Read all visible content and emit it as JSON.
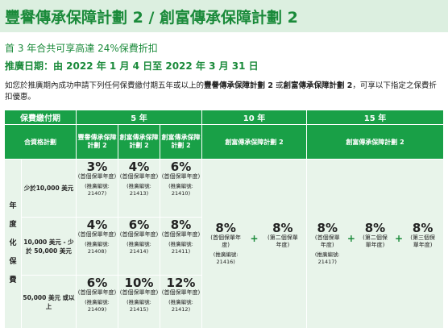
{
  "header": {
    "title": "豐譽傳承保障計劃 2 / 創富傳承保障計劃 2",
    "discount": "首 3 年合共可享高達 24%保費折扣",
    "promo_period": "推廣日期：由 2022 年 1 月 4 日至 2022 年 3 月 31 日",
    "intro_pre": "如您於推廣期內成功申請下列任何保費繳付期五年或以上的",
    "intro_plan1": "豐譽傳承保障計劃 2",
    "intro_or": " 或",
    "intro_plan2": "創富傳承保障計劃 2",
    "intro_post": "，可享以下指定之保費折扣優惠。"
  },
  "table": {
    "col_premium_term": "保費繳付期",
    "col_5yr": "5 年",
    "col_10yr": "10 年",
    "col_15yr": "15 年",
    "col_eligible_plan": "合資格計劃",
    "plan_fengyu": "豐譽傳承保障計劃 2",
    "plan_chuangfu": "創富傳承保障計劃 2",
    "plan_10yr": "創富傳承保障計劃 2",
    "plan_15yr": "創富傳承保障計劃 2",
    "side_label": "年度化保費",
    "rows": [
      {
        "label": "少於10,000 美元",
        "cells": [
          {
            "pct": "3%",
            "unit": "(首個保單年度)",
            "code": "(推廣編號: 21407)"
          },
          {
            "pct": "4%",
            "unit": "(首個保單年度)",
            "code": "(推廣編號: 21413)"
          },
          {
            "pct": "6%",
            "unit": "(首個保單年度)",
            "code": "(推廣編號: 21410)"
          }
        ]
      },
      {
        "label": "10,000 美元 - 少於 50,000 美元",
        "cells": [
          {
            "pct": "4%",
            "unit": "(首個保單年度)",
            "code": "(推廣編號: 21408)"
          },
          {
            "pct": "6%",
            "unit": "(首個保單年度)",
            "code": "(推廣編號: 21414)"
          },
          {
            "pct": "8%",
            "unit": "(首個保單年度)",
            "code": "(推廣編號: 21411)"
          }
        ]
      },
      {
        "label": "50,000 美元 或以上",
        "cells": [
          {
            "pct": "6%",
            "unit": "(首個保單年度)",
            "code": "(推廣編號: 21409)"
          },
          {
            "pct": "10%",
            "unit": "(首個保單年度)",
            "code": "(推廣編號: 21415)"
          },
          {
            "pct": "12%",
            "unit": "(首個保單年度)",
            "code": "(推廣編號: 21412)"
          }
        ]
      }
    ],
    "ten_year": {
      "first": {
        "pct": "8%",
        "unit": "(首個保單年度)",
        "code": "(推廣編號: 21416)"
      },
      "plus": "+",
      "second": {
        "pct": "8%",
        "unit": "(第二個保單年度)"
      }
    },
    "fifteen_year": {
      "first": {
        "pct": "8%",
        "unit": "(首個保單年度)",
        "code": "(推廣編號: 21417)"
      },
      "plus1": "+",
      "second": {
        "pct": "8%",
        "unit": "(第二個保單年度)"
      },
      "plus2": "+",
      "third": {
        "pct": "8%",
        "unit": "(第三個保單年度)"
      }
    }
  }
}
